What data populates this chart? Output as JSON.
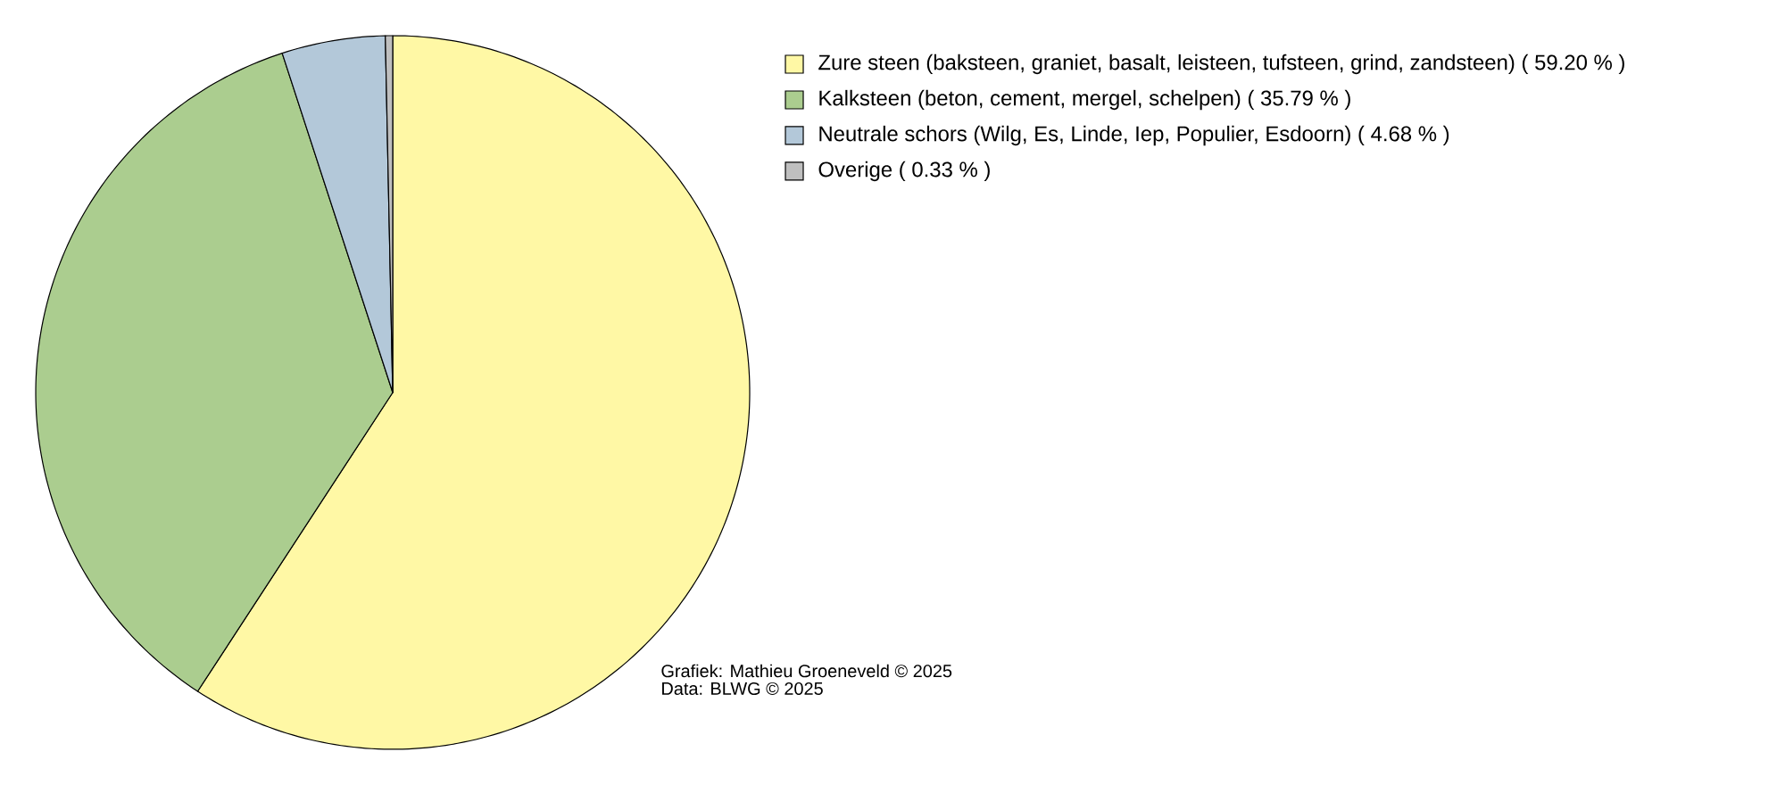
{
  "chart_data": {
    "type": "pie",
    "categories": [
      "Zure steen (baksteen, graniet, basalt, leisteen, tufsteen, grind, zandsteen) ( 59.20 % )",
      "Kalksteen (beton, cement, mergel, schelpen) ( 35.79 % )",
      "Neutrale schors (Wilg, Es, Linde, Iep, Populier, Esdoorn) ( 4.68 % )",
      "Overige ( 0.33 % )"
    ],
    "values": [
      59.2,
      35.79,
      4.68,
      0.33
    ],
    "colors": [
      "#fff8a5",
      "#abcd8f",
      "#b3c8d9",
      "#bfbfbf"
    ],
    "legend": "top right",
    "annotations": [
      "Grafiek: Mathieu Groeneveld © 2025",
      "Data: BLWG © 2025"
    ]
  }
}
